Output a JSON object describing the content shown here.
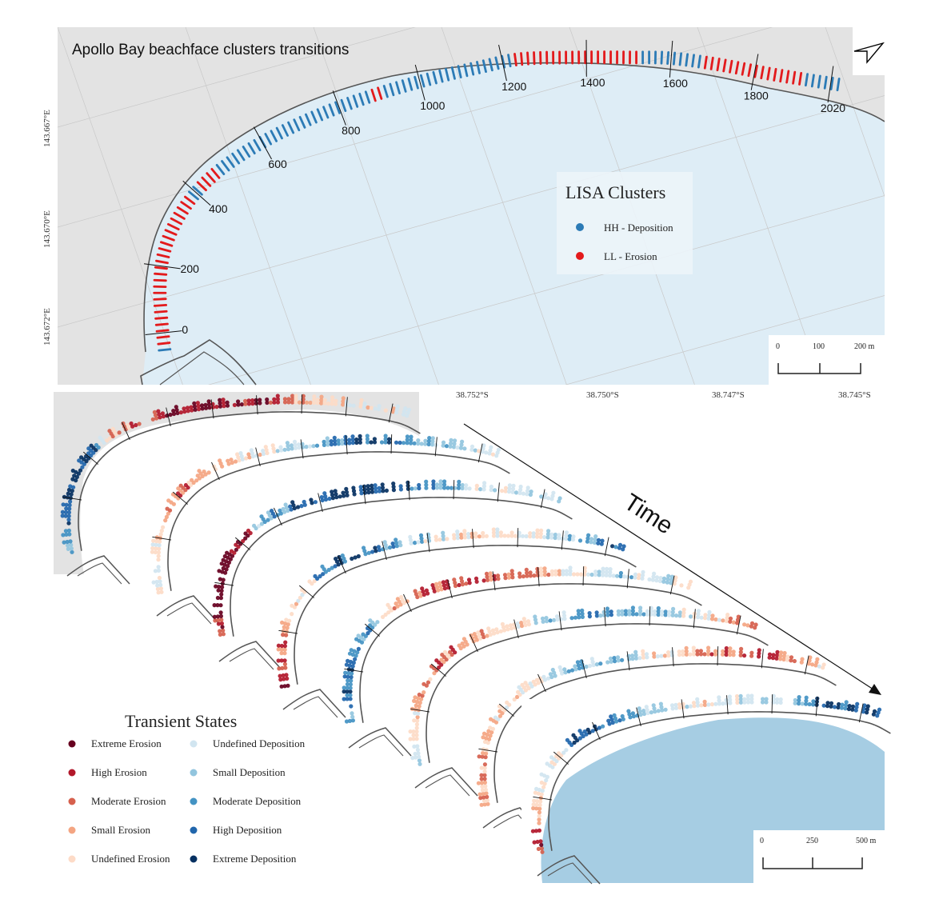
{
  "title": "Apollo Bay beachface clusters transitions",
  "chainage_labels": [
    "0",
    "200",
    "400",
    "600",
    "800",
    "1000",
    "1200",
    "1400",
    "1600",
    "1800",
    "2020"
  ],
  "lat_labels": [
    "143.667°E",
    "143.670°E",
    "143.672°E"
  ],
  "lon_labels": [
    "38.752°S",
    "38.750°S",
    "38.747°S",
    "38.745°S"
  ],
  "lisa_legend": {
    "title": "LISA Clusters",
    "items": [
      {
        "label": "HH - Deposition",
        "color": "#2c7bb6"
      },
      {
        "label": "LL - Erosion",
        "color": "#e31a1c"
      }
    ]
  },
  "top_scalebar": {
    "labels": [
      "0",
      "100",
      "200 m"
    ]
  },
  "bottom_scalebar": {
    "labels": [
      "0",
      "250",
      "500 m"
    ]
  },
  "time_label": "Time",
  "transient_legend": {
    "title": "Transient States",
    "left": [
      {
        "label": "Extreme Erosion",
        "color": "#67001f"
      },
      {
        "label": "High Erosion",
        "color": "#b2182b"
      },
      {
        "label": "Moderate Erosion",
        "color": "#d6604d"
      },
      {
        "label": "Small Erosion",
        "color": "#f4a582"
      },
      {
        "label": "Undefined Erosion",
        "color": "#fddbc7"
      }
    ],
    "right": [
      {
        "label": "Undefined Deposition",
        "color": "#d1e5f0"
      },
      {
        "label": "Small Deposition",
        "color": "#92c5de"
      },
      {
        "label": "Moderate Deposition",
        "color": "#4393c3"
      },
      {
        "label": "High Deposition",
        "color": "#2166ac"
      },
      {
        "label": "Extreme Deposition",
        "color": "#053061"
      }
    ]
  },
  "colors": {
    "land": "#e3e3e3",
    "sea_top": "#deedf6",
    "sea_bottom": "#a6cde3",
    "coast": "#555555"
  }
}
